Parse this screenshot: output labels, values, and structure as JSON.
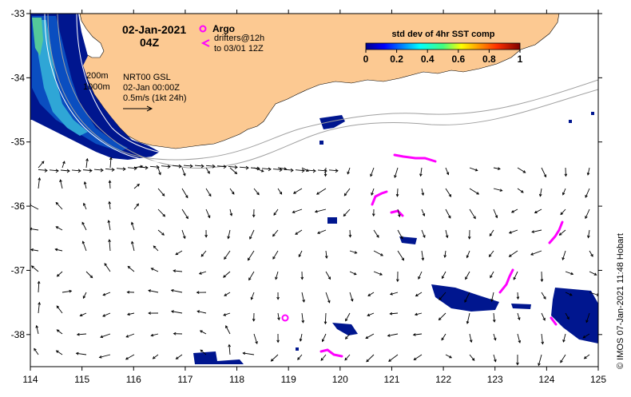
{
  "map": {
    "date": "02-Jan-2021",
    "time": "04Z",
    "x_ticks": [
      "114",
      "115",
      "116",
      "117",
      "118",
      "119",
      "120",
      "121",
      "122",
      "123",
      "124",
      "125"
    ],
    "y_ticks": [
      "-33",
      "-34",
      "-35",
      "-36",
      "-37",
      "-38"
    ],
    "x_range": [
      114,
      125
    ],
    "y_range": [
      -38.5,
      -33
    ],
    "isobaths": {
      "label_200": "200m",
      "label_1000": "1000m"
    },
    "current_info": {
      "product": "NRT00 GSL",
      "datetime": "02-Jan 00:00Z",
      "scale": "0.5m/s (1kt 24h)"
    },
    "legend": {
      "argo_label": "Argo",
      "drifters_label": "drifters@12h",
      "drifters_until": "to 03/01 12Z",
      "argo_color": "#ff00ff"
    },
    "colorbar": {
      "title": "std dev of 4hr SST comp",
      "ticks": [
        "0",
        "0.2",
        "0.4",
        "0.6",
        "0.8",
        "1"
      ]
    },
    "credit": "©  IMOS 07-Jan-2021 11:48 Hobart",
    "colors": {
      "land": "#fcc992",
      "sst_low": "#00008b",
      "sst_mid": "#00aaff",
      "drifter": "#ff00ff"
    }
  }
}
